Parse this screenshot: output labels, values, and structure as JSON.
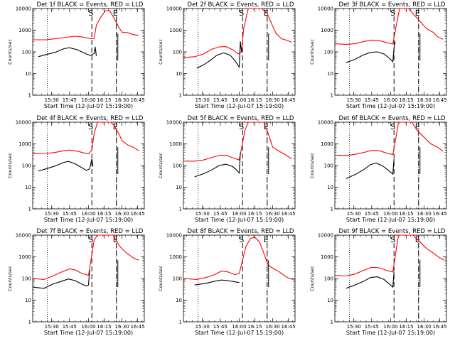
{
  "chart_data": {
    "type": "line",
    "scale": "log",
    "ylim": [
      1,
      10000
    ],
    "y_ticks": [
      "1",
      "10",
      "100",
      "1000",
      "10000"
    ],
    "ylabel": "Counts/sec",
    "xlabel": "Start Time (12-Jul-07 15:19:00)",
    "series_colors": {
      "events": "#000000",
      "lld": "#ff0000"
    },
    "panels": [
      {
        "title": "Det 1f BLACK = Events, RED = LLD",
        "x_ticks": [
          "15:30",
          "15:45",
          "16:00",
          "16:15",
          "16:30",
          "16:45"
        ],
        "markers": [
          {
            "label": "S",
            "style": "dashed"
          },
          {
            "label": "E",
            "style": "dashed"
          }
        ],
        "events": [
          [
            0.05,
            60
          ],
          [
            0.12,
            75
          ],
          [
            0.2,
            95
          ],
          [
            0.28,
            140
          ],
          [
            0.33,
            155
          ],
          [
            0.4,
            125
          ],
          [
            0.48,
            80
          ],
          [
            0.52,
            68
          ],
          [
            0.55,
            85
          ],
          [
            0.56,
            170
          ],
          [
            0.57,
            65
          ]
        ],
        "lld": [
          [
            0,
            360
          ],
          [
            0.12,
            360
          ],
          [
            0.2,
            400
          ],
          [
            0.3,
            470
          ],
          [
            0.38,
            530
          ],
          [
            0.45,
            480
          ],
          [
            0.52,
            400
          ],
          [
            0.55,
            420
          ],
          [
            0.57,
            1700
          ],
          [
            0.61,
            4000
          ],
          [
            0.65,
            7800
          ],
          [
            0.69,
            8000
          ],
          [
            0.73,
            3500
          ],
          [
            0.77,
            1400
          ],
          [
            0.8,
            800
          ],
          [
            0.85,
            780
          ],
          [
            0.9,
            620
          ],
          [
            0.95,
            580
          ]
        ]
      },
      {
        "title": "Det 2f BLACK = Events, RED = LLD",
        "x_ticks": [
          "15:30",
          "15:45",
          "16:00",
          "16:15",
          "16:30",
          "16:45"
        ],
        "markers": [
          {
            "label": "S",
            "style": "dashed"
          },
          {
            "label": "E",
            "style": "dashed"
          }
        ],
        "events": [
          [
            0.12,
            18
          ],
          [
            0.18,
            25
          ],
          [
            0.24,
            40
          ],
          [
            0.3,
            70
          ],
          [
            0.36,
            90
          ],
          [
            0.42,
            70
          ],
          [
            0.46,
            40
          ],
          [
            0.49,
            24
          ],
          [
            0.5,
            20
          ],
          [
            0.51,
            300
          ],
          [
            0.52,
            100
          ]
        ],
        "lld": [
          [
            0,
            55
          ],
          [
            0.1,
            60
          ],
          [
            0.18,
            80
          ],
          [
            0.25,
            130
          ],
          [
            0.32,
            170
          ],
          [
            0.38,
            175
          ],
          [
            0.44,
            125
          ],
          [
            0.49,
            80
          ],
          [
            0.52,
            100
          ],
          [
            0.54,
            1200
          ],
          [
            0.58,
            10000
          ],
          [
            0.7,
            10000
          ],
          [
            0.75,
            6000
          ],
          [
            0.79,
            2000
          ],
          [
            0.83,
            700
          ],
          [
            0.88,
            400
          ],
          [
            0.92,
            350
          ],
          [
            0.97,
            280
          ]
        ]
      },
      {
        "title": "Det 3f BLACK = Events, RED = LLD",
        "x_ticks": [
          "15:30",
          "15:45",
          "16:00",
          "16:15",
          "16:30",
          "16:45"
        ],
        "markers": [
          {
            "label": "S",
            "style": "dashed"
          },
          {
            "label": "E",
            "style": "dashed"
          }
        ],
        "events": [
          [
            0.1,
            32
          ],
          [
            0.18,
            45
          ],
          [
            0.25,
            70
          ],
          [
            0.32,
            95
          ],
          [
            0.38,
            100
          ],
          [
            0.44,
            80
          ],
          [
            0.48,
            55
          ],
          [
            0.52,
            35
          ],
          [
            0.53,
            150
          ],
          [
            0.54,
            300
          ]
        ],
        "lld": [
          [
            0,
            240
          ],
          [
            0.1,
            220
          ],
          [
            0.18,
            240
          ],
          [
            0.26,
            300
          ],
          [
            0.33,
            350
          ],
          [
            0.4,
            330
          ],
          [
            0.46,
            270
          ],
          [
            0.52,
            230
          ],
          [
            0.54,
            900
          ],
          [
            0.58,
            10000
          ],
          [
            0.66,
            10000
          ],
          [
            0.75,
            3000
          ],
          [
            0.82,
            1200
          ],
          [
            0.88,
            800
          ],
          [
            0.92,
            500
          ],
          [
            0.97,
            380
          ]
        ]
      },
      {
        "title": "Det 4f BLACK = Events, RED = LLD",
        "x_ticks": [
          "15:30",
          "15:45",
          "16:00",
          "16:15",
          "16:30",
          "16:45"
        ],
        "markers": [
          {
            "label": "S",
            "style": "dashed"
          },
          {
            "label": "E",
            "style": "dashed"
          }
        ],
        "events": [
          [
            0.05,
            55
          ],
          [
            0.12,
            70
          ],
          [
            0.2,
            95
          ],
          [
            0.28,
            140
          ],
          [
            0.32,
            155
          ],
          [
            0.38,
            120
          ],
          [
            0.44,
            80
          ],
          [
            0.48,
            60
          ],
          [
            0.51,
            70
          ],
          [
            0.53,
            200
          ],
          [
            0.54,
            90
          ]
        ],
        "lld": [
          [
            0,
            350
          ],
          [
            0.12,
            360
          ],
          [
            0.2,
            400
          ],
          [
            0.28,
            480
          ],
          [
            0.33,
            520
          ],
          [
            0.4,
            460
          ],
          [
            0.46,
            380
          ],
          [
            0.5,
            350
          ],
          [
            0.53,
            500
          ],
          [
            0.55,
            3000
          ],
          [
            0.58,
            10000
          ],
          [
            0.7,
            10000
          ],
          [
            0.73,
            7000
          ],
          [
            0.77,
            3000
          ],
          [
            0.8,
            1400
          ],
          [
            0.85,
            900
          ],
          [
            0.9,
            700
          ],
          [
            0.95,
            480
          ]
        ]
      },
      {
        "title": "Det 5f BLACK = Events, RED = LLD",
        "x_ticks": [
          "15:30",
          "15:45",
          "16:00",
          "16:15",
          "16:30",
          "16:45"
        ],
        "markers": [
          {
            "label": "S",
            "style": "dashed"
          },
          {
            "label": "E",
            "style": "dashed"
          }
        ],
        "events": [
          [
            0.1,
            30
          ],
          [
            0.18,
            42
          ],
          [
            0.26,
            65
          ],
          [
            0.32,
            100
          ],
          [
            0.38,
            115
          ],
          [
            0.44,
            90
          ],
          [
            0.48,
            60
          ],
          [
            0.5,
            45
          ],
          [
            0.51,
            400
          ]
        ],
        "lld": [
          [
            0,
            160
          ],
          [
            0.1,
            160
          ],
          [
            0.18,
            180
          ],
          [
            0.26,
            240
          ],
          [
            0.33,
            300
          ],
          [
            0.39,
            290
          ],
          [
            0.45,
            220
          ],
          [
            0.5,
            180
          ],
          [
            0.52,
            600
          ],
          [
            0.55,
            4000
          ],
          [
            0.58,
            10000
          ],
          [
            0.72,
            10000
          ],
          [
            0.76,
            3000
          ],
          [
            0.8,
            700
          ],
          [
            0.86,
            450
          ],
          [
            0.92,
            300
          ],
          [
            0.97,
            200
          ]
        ]
      },
      {
        "title": "Det 6f BLACK = Events, RED = LLD",
        "x_ticks": [
          "15:30",
          "15:45",
          "16:00",
          "16:15",
          "16:30",
          "16:45"
        ],
        "markers": [
          {
            "label": "S",
            "style": "dashed"
          },
          {
            "label": "E",
            "style": "dashed"
          }
        ],
        "events": [
          [
            0.1,
            25
          ],
          [
            0.18,
            38
          ],
          [
            0.26,
            65
          ],
          [
            0.32,
            110
          ],
          [
            0.37,
            130
          ],
          [
            0.43,
            95
          ],
          [
            0.48,
            60
          ],
          [
            0.52,
            40
          ],
          [
            0.53,
            200
          ]
        ],
        "lld": [
          [
            0,
            300
          ],
          [
            0.1,
            290
          ],
          [
            0.18,
            330
          ],
          [
            0.26,
            400
          ],
          [
            0.33,
            500
          ],
          [
            0.4,
            480
          ],
          [
            0.46,
            380
          ],
          [
            0.52,
            320
          ],
          [
            0.54,
            1200
          ],
          [
            0.57,
            10000
          ],
          [
            0.69,
            10000
          ],
          [
            0.74,
            4000
          ],
          [
            0.8,
            2000
          ],
          [
            0.86,
            1000
          ],
          [
            0.92,
            700
          ],
          [
            0.97,
            450
          ]
        ]
      },
      {
        "title": "Det 7f BLACK = Events, RED = LLD",
        "x_ticks": [
          "15:30",
          "15:45",
          "16:00",
          "16:15",
          "16:30",
          "16:45"
        ],
        "markers": [
          {
            "label": "S",
            "style": "dashed"
          },
          {
            "label": "E",
            "style": "dashed"
          }
        ],
        "events": [
          [
            0,
            40
          ],
          [
            0.1,
            35
          ],
          [
            0.18,
            55
          ],
          [
            0.26,
            75
          ],
          [
            0.32,
            95
          ],
          [
            0.38,
            80
          ],
          [
            0.44,
            55
          ],
          [
            0.48,
            45
          ],
          [
            0.5,
            50
          ],
          [
            0.51,
            250
          ]
        ],
        "lld": [
          [
            0,
            100
          ],
          [
            0.1,
            90
          ],
          [
            0.18,
            130
          ],
          [
            0.26,
            200
          ],
          [
            0.33,
            280
          ],
          [
            0.38,
            250
          ],
          [
            0.44,
            170
          ],
          [
            0.5,
            140
          ],
          [
            0.52,
            600
          ],
          [
            0.55,
            6000
          ],
          [
            0.58,
            10000
          ],
          [
            0.72,
            10000
          ],
          [
            0.78,
            3000
          ],
          [
            0.84,
            1500
          ],
          [
            0.9,
            900
          ],
          [
            0.95,
            700
          ]
        ]
      },
      {
        "title": "Det 8f BLACK = Events, RED = LLD",
        "x_ticks": [
          "15:30",
          "15:45",
          "16:00",
          "16:15",
          "16:30",
          "16:45"
        ],
        "markers": [
          {
            "label": "S",
            "style": "dashed"
          },
          {
            "label": "E",
            "style": "dashed"
          }
        ],
        "events": [
          [
            0.1,
            50
          ],
          [
            0.2,
            60
          ],
          [
            0.28,
            75
          ],
          [
            0.34,
            85
          ],
          [
            0.4,
            80
          ],
          [
            0.46,
            70
          ],
          [
            0.5,
            65
          ]
        ],
        "lld": [
          [
            0,
            100
          ],
          [
            0.12,
            90
          ],
          [
            0.2,
            110
          ],
          [
            0.28,
            150
          ],
          [
            0.34,
            220
          ],
          [
            0.4,
            200
          ],
          [
            0.46,
            150
          ],
          [
            0.5,
            170
          ],
          [
            0.53,
            700
          ],
          [
            0.56,
            3000
          ],
          [
            0.6,
            7000
          ],
          [
            0.64,
            8000
          ],
          [
            0.68,
            5000
          ],
          [
            0.72,
            1500
          ],
          [
            0.76,
            400
          ],
          [
            0.8,
            300
          ],
          [
            0.86,
            200
          ],
          [
            0.93,
            110
          ],
          [
            0.98,
            90
          ]
        ]
      },
      {
        "title": "Det 9f BLACK = Events, RED = LLD",
        "x_ticks": [
          "15:30",
          "15:45",
          "16:00",
          "16:15",
          "16:30",
          "16:45"
        ],
        "markers": [
          {
            "label": "S",
            "style": "dashed"
          },
          {
            "label": "E",
            "style": "dashed"
          }
        ],
        "events": [
          [
            0.1,
            35
          ],
          [
            0.18,
            50
          ],
          [
            0.26,
            75
          ],
          [
            0.32,
            110
          ],
          [
            0.38,
            120
          ],
          [
            0.44,
            90
          ],
          [
            0.48,
            60
          ],
          [
            0.52,
            40
          ],
          [
            0.53,
            200
          ]
        ],
        "lld": [
          [
            0,
            140
          ],
          [
            0.1,
            130
          ],
          [
            0.18,
            160
          ],
          [
            0.26,
            240
          ],
          [
            0.33,
            330
          ],
          [
            0.4,
            310
          ],
          [
            0.46,
            240
          ],
          [
            0.52,
            200
          ],
          [
            0.54,
            1000
          ],
          [
            0.57,
            10000
          ],
          [
            0.7,
            10000
          ],
          [
            0.76,
            5000
          ],
          [
            0.82,
            2500
          ],
          [
            0.88,
            1500
          ],
          [
            0.94,
            900
          ],
          [
            0.98,
            700
          ]
        ]
      }
    ]
  }
}
